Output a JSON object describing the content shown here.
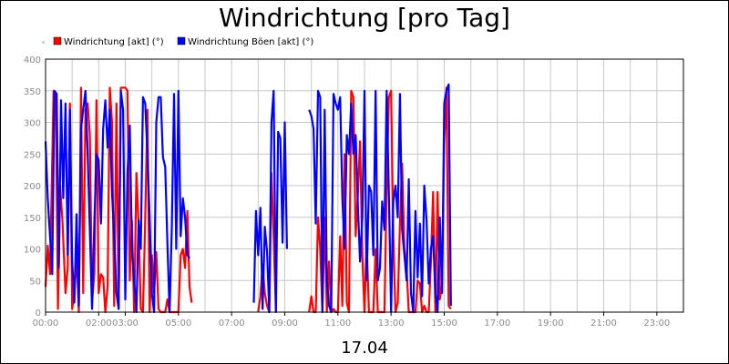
{
  "chart_data": {
    "type": "line",
    "title": "Windrichtung [pro Tag]",
    "xlabel": "17.04",
    "ylabel": "",
    "ylim": [
      0,
      400
    ],
    "yticks": [
      0,
      50,
      100,
      150,
      200,
      250,
      300,
      350,
      400
    ],
    "xlim": [
      "00:00",
      "24:00"
    ],
    "xticks": [
      "00:00",
      "02:00",
      "03:00",
      "05:00",
      "07:00",
      "09:00",
      "11:00",
      "13:00",
      "15:00",
      "17:00",
      "19:00",
      "21:00",
      "23:00"
    ],
    "grid": true,
    "legend_position": "top-left",
    "series": [
      {
        "name": "Windrichtung [akt] (°)",
        "color": "#ff0000",
        "points": [
          [
            "00:00",
            40
          ],
          [
            "00:05",
            105
          ],
          [
            "00:10",
            60
          ],
          [
            "00:18",
            350
          ],
          [
            "00:23",
            345
          ],
          [
            "00:28",
            5
          ],
          [
            "00:33",
            200
          ],
          [
            "00:38",
            145
          ],
          [
            "00:45",
            30
          ],
          [
            "00:50",
            70
          ],
          [
            "00:55",
            330
          ],
          [
            "01:00",
            5
          ],
          [
            "01:05",
            30
          ],
          [
            "01:10",
            90
          ],
          [
            "01:15",
            0
          ],
          [
            "01:20",
            355
          ],
          [
            "01:25",
            30
          ],
          [
            "01:30",
            320
          ],
          [
            "01:35",
            330
          ],
          [
            "01:40",
            280
          ],
          [
            "01:45",
            15
          ],
          [
            "01:50",
            60
          ],
          [
            "01:55",
            335
          ],
          [
            "02:00",
            30
          ],
          [
            "02:05",
            60
          ],
          [
            "02:10",
            55
          ],
          [
            "02:15",
            0
          ],
          [
            "02:20",
            40
          ],
          [
            "02:25",
            355
          ],
          [
            "02:30",
            300
          ],
          [
            "02:35",
            10
          ],
          [
            "02:40",
            330
          ],
          [
            "02:45",
            5
          ],
          [
            "02:50",
            355
          ],
          [
            "03:00",
            355
          ],
          [
            "03:05",
            350
          ],
          [
            "03:10",
            50
          ],
          [
            "03:15",
            145
          ],
          [
            "03:20",
            0
          ],
          [
            "03:25",
            220
          ],
          [
            "03:30",
            140
          ],
          [
            "03:35",
            5
          ],
          [
            "03:40",
            0
          ],
          [
            "03:45",
            150
          ],
          [
            "03:50",
            320
          ],
          [
            "03:55",
            0
          ],
          [
            "04:00",
            90
          ],
          [
            "04:05",
            30
          ],
          [
            "04:10",
            95
          ],
          [
            "04:15",
            5
          ],
          [
            "04:20",
            0
          ],
          [
            "04:25",
            0
          ],
          [
            "04:30",
            0
          ],
          [
            "04:35",
            20
          ],
          [
            "04:40",
            0
          ],
          [
            "04:45",
            0
          ],
          [
            "04:50",
            0
          ],
          [
            "04:55",
            0
          ],
          [
            "05:00",
            0
          ],
          [
            "05:05",
            90
          ],
          [
            "05:10",
            100
          ],
          [
            "05:15",
            70
          ],
          [
            "05:20",
            160
          ],
          [
            "05:25",
            40
          ],
          [
            "05:30",
            15
          ],
          null,
          [
            "08:00",
            0
          ],
          [
            "08:05",
            25
          ],
          [
            "08:10",
            75
          ],
          [
            "08:15",
            30
          ],
          [
            "08:20",
            10
          ],
          [
            "08:25",
            0
          ],
          [
            "08:30",
            220
          ],
          [
            "08:35",
            120
          ],
          [
            "08:40",
            0
          ],
          null,
          [
            "09:55",
            0
          ],
          [
            "10:00",
            25
          ],
          [
            "10:05",
            0
          ],
          [
            "10:10",
            0
          ],
          [
            "10:15",
            150
          ],
          [
            "10:20",
            100
          ],
          [
            "10:25",
            0
          ],
          [
            "10:30",
            150
          ],
          [
            "10:35",
            0
          ],
          [
            "10:40",
            80
          ],
          [
            "10:45",
            0
          ],
          [
            "10:50",
            5
          ],
          [
            "10:55",
            0
          ],
          [
            "11:00",
            0
          ],
          [
            "11:05",
            120
          ],
          [
            "11:10",
            10
          ],
          [
            "11:15",
            250
          ],
          [
            "11:20",
            15
          ],
          [
            "11:25",
            0
          ],
          [
            "11:30",
            350
          ],
          [
            "11:35",
            340
          ],
          [
            "11:40",
            120
          ],
          [
            "11:45",
            185
          ],
          [
            "11:50",
            270
          ],
          [
            "11:55",
            90
          ],
          [
            "12:00",
            0
          ],
          [
            "12:05",
            110
          ],
          [
            "12:10",
            0
          ],
          [
            "12:15",
            0
          ],
          [
            "12:20",
            0
          ],
          [
            "12:25",
            100
          ],
          [
            "12:30",
            0
          ],
          [
            "12:35",
            0
          ],
          [
            "12:40",
            0
          ],
          [
            "12:45",
            0
          ],
          [
            "12:50",
            195
          ],
          [
            "12:55",
            340
          ],
          [
            "13:00",
            350
          ],
          [
            "13:05",
            120
          ],
          [
            "13:10",
            0
          ],
          [
            "13:15",
            15
          ],
          [
            "13:20",
            140
          ],
          [
            "13:25",
            235
          ],
          [
            "13:30",
            100
          ],
          [
            "13:35",
            70
          ],
          [
            "13:40",
            0
          ],
          [
            "13:45",
            0
          ],
          [
            "13:50",
            0
          ],
          [
            "13:55",
            0
          ],
          [
            "14:00",
            50
          ],
          [
            "14:05",
            45
          ],
          [
            "14:10",
            0
          ],
          [
            "14:15",
            10
          ],
          [
            "14:20",
            0
          ],
          [
            "14:25",
            0
          ],
          [
            "14:30",
            80
          ],
          [
            "14:35",
            190
          ],
          [
            "14:40",
            0
          ],
          [
            "14:45",
            190
          ],
          [
            "14:50",
            20
          ],
          [
            "14:55",
            45
          ],
          [
            "15:00",
            270
          ],
          [
            "15:05",
            355
          ],
          [
            "15:10",
            10
          ],
          [
            "15:15",
            5
          ]
        ]
      },
      {
        "name": "Windrichtung Böen [akt] (°)",
        "color": "#0000ff",
        "points": [
          [
            "00:00",
            270
          ],
          [
            "00:05",
            180
          ],
          [
            "00:10",
            120
          ],
          [
            "00:15",
            60
          ],
          [
            "00:20",
            350
          ],
          [
            "00:25",
            345
          ],
          [
            "00:30",
            70
          ],
          [
            "00:35",
            335
          ],
          [
            "00:40",
            180
          ],
          [
            "00:45",
            330
          ],
          [
            "00:50",
            90
          ],
          [
            "00:55",
            320
          ],
          [
            "01:00",
            80
          ],
          [
            "01:05",
            15
          ],
          [
            "01:10",
            155
          ],
          [
            "01:15",
            10
          ],
          [
            "01:20",
            290
          ],
          [
            "01:25",
            320
          ],
          [
            "01:30",
            350
          ],
          [
            "01:35",
            250
          ],
          [
            "01:40",
            130
          ],
          [
            "01:45",
            5
          ],
          [
            "01:50",
            140
          ],
          [
            "01:55",
            250
          ],
          [
            "02:00",
            240
          ],
          [
            "02:05",
            140
          ],
          [
            "02:10",
            290
          ],
          [
            "02:15",
            335
          ],
          [
            "02:20",
            260
          ],
          [
            "02:25",
            320
          ],
          [
            "02:30",
            190
          ],
          [
            "02:35",
            120
          ],
          [
            "02:40",
            30
          ],
          [
            "02:45",
            5
          ],
          [
            "02:50",
            350
          ],
          [
            "02:55",
            320
          ],
          [
            "03:00",
            20
          ],
          [
            "03:05",
            220
          ],
          [
            "03:10",
            295
          ],
          [
            "03:15",
            100
          ],
          [
            "03:20",
            50
          ],
          [
            "03:25",
            0
          ],
          [
            "03:30",
            145
          ],
          [
            "03:35",
            100
          ],
          [
            "03:40",
            340
          ],
          [
            "03:45",
            330
          ],
          [
            "03:50",
            250
          ],
          [
            "03:55",
            150
          ],
          [
            "04:00",
            30
          ],
          [
            "04:05",
            0
          ],
          [
            "04:10",
            300
          ],
          [
            "04:15",
            340
          ],
          [
            "04:20",
            340
          ],
          [
            "04:25",
            245
          ],
          [
            "04:30",
            230
          ],
          [
            "04:35",
            110
          ],
          [
            "04:40",
            0
          ],
          [
            "04:45",
            130
          ],
          [
            "04:50",
            345
          ],
          [
            "04:55",
            100
          ],
          [
            "05:00",
            350
          ],
          [
            "05:05",
            120
          ],
          [
            "05:10",
            180
          ],
          [
            "05:15",
            150
          ],
          [
            "05:20",
            90
          ],
          [
            "05:25",
            85
          ],
          null,
          [
            "07:50",
            15
          ],
          [
            "07:55",
            160
          ],
          [
            "08:00",
            90
          ],
          [
            "08:05",
            165
          ],
          [
            "08:10",
            5
          ],
          [
            "08:15",
            135
          ],
          [
            "08:20",
            95
          ],
          [
            "08:25",
            0
          ],
          [
            "08:30",
            300
          ],
          [
            "08:35",
            350
          ],
          [
            "08:40",
            0
          ],
          [
            "08:45",
            285
          ],
          [
            "08:50",
            275
          ],
          [
            "08:55",
            110
          ],
          [
            "09:00",
            300
          ],
          [
            "09:05",
            100
          ],
          null,
          [
            "09:55",
            320
          ],
          [
            "10:00",
            310
          ],
          [
            "10:05",
            290
          ],
          [
            "10:10",
            140
          ],
          [
            "10:15",
            350
          ],
          [
            "10:20",
            340
          ],
          [
            "10:25",
            0
          ],
          [
            "10:30",
            320
          ],
          [
            "10:35",
            50
          ],
          [
            "10:40",
            10
          ],
          [
            "10:45",
            0
          ],
          [
            "10:50",
            345
          ],
          [
            "10:55",
            330
          ],
          [
            "11:00",
            320
          ],
          [
            "11:05",
            340
          ],
          [
            "11:10",
            180
          ],
          [
            "11:15",
            100
          ],
          [
            "11:20",
            280
          ],
          [
            "11:25",
            250
          ],
          [
            "11:30",
            330
          ],
          [
            "11:35",
            250
          ],
          [
            "11:40",
            280
          ],
          [
            "11:45",
            170
          ],
          [
            "11:50",
            80
          ],
          [
            "11:55",
            150
          ],
          [
            "12:00",
            350
          ],
          [
            "12:05",
            50
          ],
          [
            "12:10",
            200
          ],
          [
            "12:15",
            190
          ],
          [
            "12:20",
            90
          ],
          [
            "12:25",
            350
          ],
          [
            "12:30",
            50
          ],
          [
            "12:35",
            70
          ],
          [
            "12:40",
            175
          ],
          [
            "12:45",
            130
          ],
          [
            "12:50",
            350
          ],
          [
            "12:55",
            190
          ],
          [
            "13:00",
            0
          ],
          [
            "13:05",
            175
          ],
          [
            "13:10",
            200
          ],
          [
            "13:15",
            150
          ],
          [
            "13:20",
            345
          ],
          [
            "13:25",
            130
          ],
          [
            "13:30",
            90
          ],
          [
            "13:35",
            50
          ],
          [
            "13:40",
            210
          ],
          [
            "13:45",
            30
          ],
          [
            "13:50",
            0
          ],
          [
            "13:55",
            160
          ],
          [
            "14:00",
            55
          ],
          [
            "14:05",
            140
          ],
          [
            "14:10",
            25
          ],
          [
            "14:15",
            200
          ],
          [
            "14:20",
            145
          ],
          [
            "14:25",
            45
          ],
          [
            "14:30",
            100
          ],
          [
            "14:35",
            120
          ],
          [
            "14:40",
            30
          ],
          [
            "14:45",
            0
          ],
          [
            "14:50",
            150
          ],
          [
            "14:55",
            30
          ],
          [
            "15:00",
            330
          ],
          [
            "15:05",
            350
          ],
          [
            "15:10",
            360
          ],
          [
            "15:15",
            10
          ]
        ]
      }
    ]
  }
}
